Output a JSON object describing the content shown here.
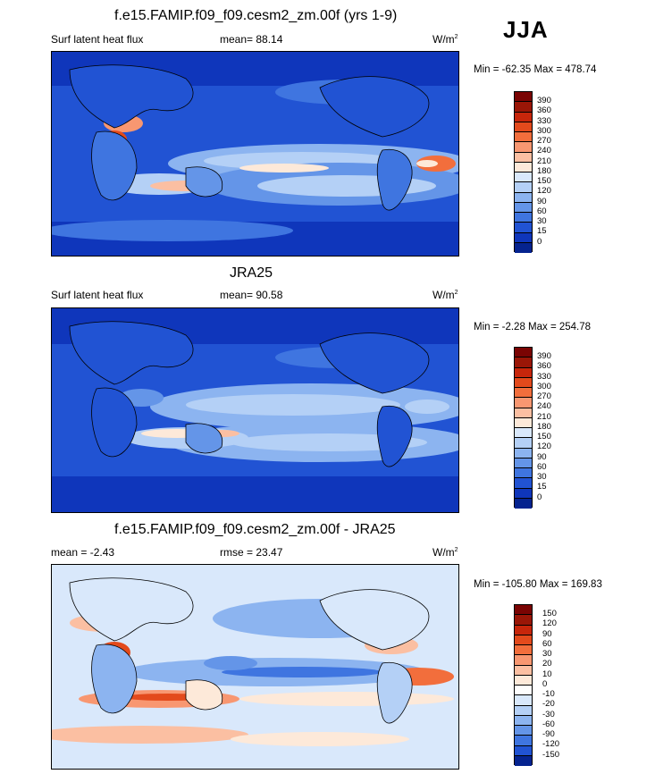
{
  "season": "JJA",
  "panels": [
    {
      "title": "f.e15.FAMIP.f09_f09.cesm2_zm.00f (yrs 1-9)",
      "left_label": "Surf latent heat flux",
      "mean_label": "mean=  88.14",
      "units": "W/m",
      "units_sup": "2",
      "minmax": "Min = -62.35 Max = 478.74",
      "colorbar_labels": [
        "390",
        "360",
        "330",
        "300",
        "270",
        "240",
        "210",
        "180",
        "150",
        "120",
        "90",
        "60",
        "30",
        "15",
        "0"
      ]
    },
    {
      "title": "JRA25",
      "left_label": "Surf latent heat flux",
      "mean_label": "mean=  90.58",
      "units": "W/m",
      "units_sup": "2",
      "minmax": "Min =  -2.28 Max = 254.78",
      "colorbar_labels": [
        "390",
        "360",
        "330",
        "300",
        "270",
        "240",
        "210",
        "180",
        "150",
        "120",
        "90",
        "60",
        "30",
        "15",
        "0"
      ]
    },
    {
      "title": "f.e15.FAMIP.f09_f09.cesm2_zm.00f - JRA25",
      "left_label": "mean =  -2.43",
      "mean_label": "rmse =  23.47",
      "units": "W/m",
      "units_sup": "2",
      "minmax": "Min = -105.80 Max = 169.83",
      "colorbar_labels": [
        "150",
        "120",
        "90",
        "60",
        "30",
        "20",
        "10",
        "0",
        "-10",
        "-20",
        "-30",
        "-60",
        "-90",
        "-120",
        "-150"
      ]
    }
  ],
  "colors": {
    "abs_scale": [
      "#7a0403",
      "#9a1607",
      "#c7260b",
      "#e34a1c",
      "#f26e3c",
      "#f89771",
      "#fbbfa2",
      "#fde9d9",
      "#d9e8fb",
      "#b4d0f6",
      "#8cb4f0",
      "#6495e8",
      "#3f75e0",
      "#2153d3",
      "#0f36bb",
      "#05238f"
    ],
    "diff_scale": [
      "#7a0403",
      "#9a1607",
      "#c7260b",
      "#e34a1c",
      "#f26e3c",
      "#f89771",
      "#fbbfa2",
      "#fde9d9",
      "#fdfdfd",
      "#d9e8fb",
      "#b4d0f6",
      "#8cb4f0",
      "#6495e8",
      "#3f75e0",
      "#2153d3",
      "#05238f"
    ]
  }
}
